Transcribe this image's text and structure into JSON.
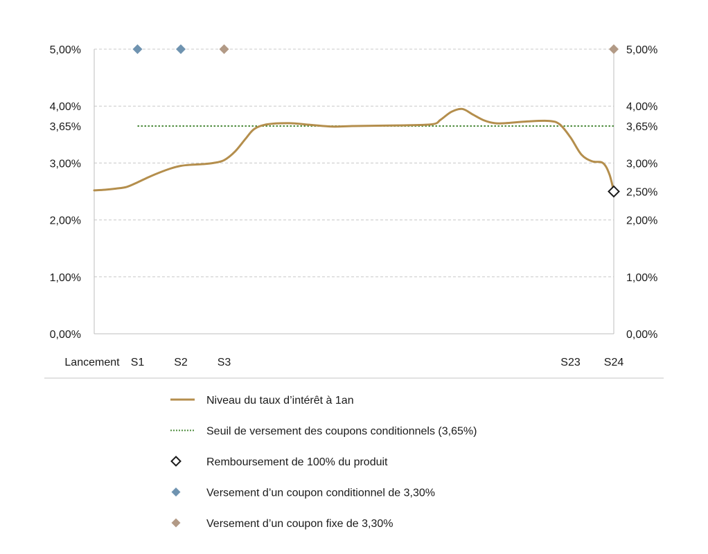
{
  "chart_data": {
    "type": "line",
    "title": "",
    "xlabel": "",
    "ylabel": "",
    "ylim": [
      0,
      5
    ],
    "grid": true,
    "legend_position": "bottom",
    "y_ticks_left": [
      {
        "value": 0,
        "label": "0,00%"
      },
      {
        "value": 1,
        "label": "1,00%"
      },
      {
        "value": 2,
        "label": "2,00%"
      },
      {
        "value": 3,
        "label": "3,00%"
      },
      {
        "value": 3.65,
        "label": "3,65%"
      },
      {
        "value": 4,
        "label": "4,00%"
      },
      {
        "value": 5,
        "label": "5,00%"
      }
    ],
    "y_ticks_right": [
      {
        "value": 0,
        "label": "0,00%"
      },
      {
        "value": 1,
        "label": "1,00%"
      },
      {
        "value": 2,
        "label": "2,00%"
      },
      {
        "value": 2.5,
        "label": "2,50%"
      },
      {
        "value": 3,
        "label": "3,00%"
      },
      {
        "value": 3.65,
        "label": "3,65%"
      },
      {
        "value": 4,
        "label": "4,00%"
      },
      {
        "value": 5,
        "label": "5,00%"
      }
    ],
    "gridline_values": [
      1,
      2,
      3,
      4,
      5
    ],
    "x_domain": [
      0,
      24
    ],
    "x_ticks": [
      {
        "value": 0,
        "label": "Lancement"
      },
      {
        "value": 2,
        "label": "S1"
      },
      {
        "value": 4,
        "label": "S2"
      },
      {
        "value": 6,
        "label": "S3"
      },
      {
        "value": 22,
        "label": "S23"
      },
      {
        "value": 24,
        "label": "S24"
      }
    ],
    "series": [
      {
        "name": "Niveau du taux d’intérêt à 1an",
        "kind": "line",
        "color": "#b48e4c",
        "points": [
          [
            0,
            2.52
          ],
          [
            0.5,
            2.53
          ],
          [
            1,
            2.55
          ],
          [
            1.5,
            2.58
          ],
          [
            2,
            2.66
          ],
          [
            2.5,
            2.75
          ],
          [
            3,
            2.83
          ],
          [
            3.5,
            2.9
          ],
          [
            4,
            2.95
          ],
          [
            4.5,
            2.97
          ],
          [
            5,
            2.98
          ],
          [
            5.5,
            3.0
          ],
          [
            6,
            3.05
          ],
          [
            6.5,
            3.2
          ],
          [
            7,
            3.43
          ],
          [
            7.4,
            3.6
          ],
          [
            8,
            3.68
          ],
          [
            9,
            3.7
          ],
          [
            10,
            3.67
          ],
          [
            11,
            3.64
          ],
          [
            12,
            3.65
          ],
          [
            14,
            3.66
          ],
          [
            15.6,
            3.68
          ],
          [
            16,
            3.76
          ],
          [
            16.5,
            3.9
          ],
          [
            17,
            3.95
          ],
          [
            17.5,
            3.85
          ],
          [
            18,
            3.75
          ],
          [
            18.5,
            3.7
          ],
          [
            19,
            3.7
          ],
          [
            20,
            3.73
          ],
          [
            21,
            3.74
          ],
          [
            21.5,
            3.68
          ],
          [
            22,
            3.45
          ],
          [
            22.5,
            3.15
          ],
          [
            23,
            3.03
          ],
          [
            23.5,
            3.0
          ],
          [
            23.8,
            2.8
          ],
          [
            24,
            2.5
          ]
        ]
      },
      {
        "name": "Seuil de versement des coupons conditionnels (3,65%)",
        "kind": "threshold",
        "color": "#4b8a3a",
        "value": 3.65,
        "x_from": 2,
        "x_to": 24
      },
      {
        "name": "Remboursement de 100% du produit",
        "kind": "marker",
        "marker": "diamond-open",
        "color": "#1a1a1a",
        "points": [
          [
            24,
            2.5
          ]
        ]
      },
      {
        "name": "Versement d’un coupon conditionnel de 3,30%",
        "kind": "marker",
        "marker": "diamond",
        "color": "#6f93b0",
        "points": [
          [
            2,
            5
          ],
          [
            4,
            5
          ]
        ]
      },
      {
        "name": "Versement d’un coupon fixe de 3,30%",
        "kind": "marker",
        "marker": "diamond",
        "color": "#b29a86",
        "points": [
          [
            6,
            5
          ],
          [
            24,
            5
          ]
        ]
      }
    ]
  },
  "colors": {
    "grid": "#c8c8c8",
    "axis": "#bdbdbd",
    "divider": "#c6c6c6",
    "text": "#1a1a1a"
  }
}
